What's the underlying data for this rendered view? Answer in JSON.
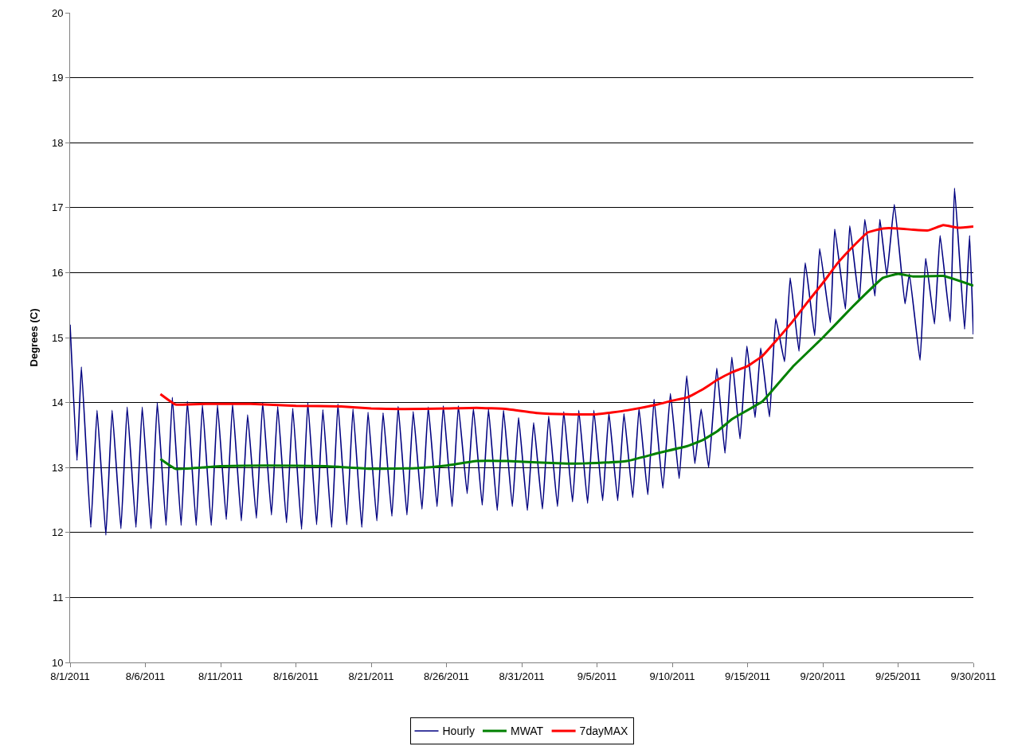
{
  "chart_data": {
    "type": "line",
    "ylabel": "Degrees (C)",
    "xlim": [
      "2011-08-01",
      "2011-09-30"
    ],
    "xticks": [
      {
        "value": "2011-08-01",
        "label": "8/1/2011"
      },
      {
        "value": "2011-08-06",
        "label": "8/6/2011"
      },
      {
        "value": "2011-08-11",
        "label": "8/11/2011"
      },
      {
        "value": "2011-08-16",
        "label": "8/16/2011"
      },
      {
        "value": "2011-08-21",
        "label": "8/21/2011"
      },
      {
        "value": "2011-08-26",
        "label": "8/26/2011"
      },
      {
        "value": "2011-08-31",
        "label": "8/31/2011"
      },
      {
        "value": "2011-09-05",
        "label": "9/5/2011"
      },
      {
        "value": "2011-09-10",
        "label": "9/10/2011"
      },
      {
        "value": "2011-09-15",
        "label": "9/15/2011"
      },
      {
        "value": "2011-09-20",
        "label": "9/20/2011"
      },
      {
        "value": "2011-09-25",
        "label": "9/25/2011"
      },
      {
        "value": "2011-09-30",
        "label": "9/30/2011"
      }
    ],
    "ylim": [
      10,
      20
    ],
    "yticks": [
      10,
      11,
      12,
      13,
      14,
      15,
      16,
      17,
      18,
      19,
      20
    ],
    "grid": "y",
    "legend": "bottom",
    "marker": "none",
    "line_style": "solid",
    "series": [
      {
        "name": "Hourly",
        "color": "#000080",
        "x": [
          "2011-08-01T00:00",
          "2011-08-01T11:00",
          "2011-08-01T18:00",
          "2011-08-02T09:00",
          "2011-08-02T19:00",
          "2011-08-03T09:00",
          "2011-08-03T19:00",
          "2011-08-04T09:00",
          "2011-08-04T19:00",
          "2011-08-05T09:00",
          "2011-08-05T19:00",
          "2011-08-06T09:00",
          "2011-08-06T19:00",
          "2011-08-07T09:00",
          "2011-08-07T19:00",
          "2011-08-08T09:00",
          "2011-08-08T19:00",
          "2011-08-09T09:00",
          "2011-08-09T19:00",
          "2011-08-10T09:00",
          "2011-08-10T19:00",
          "2011-08-11T09:00",
          "2011-08-11T19:00",
          "2011-08-12T09:00",
          "2011-08-12T19:00",
          "2011-08-13T09:00",
          "2011-08-13T19:00",
          "2011-08-14T09:00",
          "2011-08-14T19:00",
          "2011-08-15T09:00",
          "2011-08-15T19:00",
          "2011-08-16T09:00",
          "2011-08-16T19:00",
          "2011-08-17T09:00",
          "2011-08-17T19:00",
          "2011-08-18T09:00",
          "2011-08-18T19:00",
          "2011-08-19T09:00",
          "2011-08-19T19:00",
          "2011-08-20T09:00",
          "2011-08-20T19:00",
          "2011-08-21T09:00",
          "2011-08-21T19:00",
          "2011-08-22T09:00",
          "2011-08-22T19:00",
          "2011-08-23T09:00",
          "2011-08-23T19:00",
          "2011-08-24T09:00",
          "2011-08-24T19:00",
          "2011-08-25T09:00",
          "2011-08-25T19:00",
          "2011-08-26T09:00",
          "2011-08-26T19:00",
          "2011-08-27T09:00",
          "2011-08-27T19:00",
          "2011-08-28T09:00",
          "2011-08-28T19:00",
          "2011-08-29T09:00",
          "2011-08-29T19:00",
          "2011-08-30T09:00",
          "2011-08-30T19:00",
          "2011-08-31T09:00",
          "2011-08-31T19:00",
          "2011-09-01T09:00",
          "2011-09-01T19:00",
          "2011-09-02T09:00",
          "2011-09-02T19:00",
          "2011-09-03T09:00",
          "2011-09-03T19:00",
          "2011-09-04T09:00",
          "2011-09-04T19:00",
          "2011-09-05T09:00",
          "2011-09-05T19:00",
          "2011-09-06T09:00",
          "2011-09-06T19:00",
          "2011-09-07T09:00",
          "2011-09-07T19:00",
          "2011-09-08T09:00",
          "2011-09-08T19:00",
          "2011-09-09T09:00",
          "2011-09-09T21:00",
          "2011-09-10T11:00",
          "2011-09-10T23:00",
          "2011-09-11T12:00",
          "2011-09-11T22:00",
          "2011-09-12T10:00",
          "2011-09-12T23:00",
          "2011-09-13T12:00",
          "2011-09-13T23:00",
          "2011-09-14T12:00",
          "2011-09-14T23:00",
          "2011-09-15T12:00",
          "2011-09-15T21:00",
          "2011-09-16T11:00",
          "2011-09-16T21:00",
          "2011-09-17T11:00",
          "2011-09-17T20:00",
          "2011-09-18T10:00",
          "2011-09-18T20:00",
          "2011-09-19T11:00",
          "2011-09-19T19:00",
          "2011-09-20T12:00",
          "2011-09-20T19:00",
          "2011-09-21T12:00",
          "2011-09-21T19:00",
          "2011-09-22T10:00",
          "2011-09-22T19:00",
          "2011-09-23T11:00",
          "2011-09-23T19:00",
          "2011-09-24T06:00",
          "2011-09-24T18:00",
          "2011-09-25T11:00",
          "2011-09-25T18:00",
          "2011-09-26T11:00",
          "2011-09-26T20:00",
          "2011-09-27T10:00",
          "2011-09-27T19:00",
          "2011-09-28T11:00",
          "2011-09-28T18:00",
          "2011-09-29T10:00",
          "2011-09-29T18:00",
          "2011-09-30T00:00"
        ],
        "values": [
          15.2,
          13.11,
          14.55,
          12.08,
          13.88,
          11.96,
          13.88,
          12.06,
          13.93,
          12.08,
          13.93,
          12.06,
          14.0,
          12.11,
          14.08,
          12.11,
          14.02,
          12.11,
          13.96,
          12.11,
          13.96,
          12.2,
          13.98,
          12.18,
          13.81,
          12.22,
          14.0,
          12.27,
          13.94,
          12.15,
          13.91,
          12.05,
          14.0,
          12.12,
          13.89,
          12.08,
          13.98,
          12.12,
          13.9,
          12.08,
          13.85,
          12.18,
          13.84,
          12.25,
          13.94,
          12.27,
          13.86,
          12.36,
          13.93,
          12.4,
          13.95,
          12.4,
          13.95,
          12.6,
          13.91,
          12.42,
          13.9,
          12.34,
          13.88,
          12.4,
          13.77,
          12.34,
          13.69,
          12.36,
          13.79,
          12.4,
          13.86,
          12.47,
          13.88,
          12.45,
          13.88,
          12.49,
          13.84,
          12.49,
          13.83,
          12.54,
          13.91,
          12.58,
          14.05,
          12.68,
          14.14,
          12.83,
          14.41,
          13.06,
          13.9,
          13.0,
          14.53,
          13.22,
          14.7,
          13.44,
          14.87,
          13.77,
          14.84,
          13.78,
          15.29,
          14.63,
          15.92,
          14.79,
          16.15,
          15.03,
          16.37,
          15.23,
          16.67,
          15.44,
          16.72,
          15.56,
          16.82,
          15.64,
          16.82,
          15.96,
          17.05,
          15.52,
          15.98,
          14.65,
          16.22,
          15.21,
          16.57,
          15.25,
          17.3,
          15.13,
          16.57,
          15.05
        ]
      },
      {
        "name": "MWAT",
        "color": "#008000",
        "x": [
          "2011-08-07",
          "2011-08-08",
          "2011-08-11",
          "2011-08-14",
          "2011-08-18",
          "2011-08-21",
          "2011-08-24",
          "2011-08-26",
          "2011-08-28",
          "2011-08-30",
          "2011-09-03",
          "2011-09-05",
          "2011-09-07",
          "2011-09-09",
          "2011-09-11",
          "2011-09-12",
          "2011-09-13",
          "2011-09-14",
          "2011-09-16",
          "2011-09-18",
          "2011-09-20",
          "2011-09-22",
          "2011-09-24",
          "2011-09-25",
          "2011-09-26",
          "2011-09-28",
          "2011-09-30"
        ],
        "values": [
          13.13,
          12.98,
          13.02,
          13.03,
          13.02,
          12.98,
          12.99,
          13.03,
          13.1,
          13.1,
          13.06,
          13.07,
          13.1,
          13.22,
          13.33,
          13.42,
          13.56,
          13.75,
          14.02,
          14.55,
          15.0,
          15.48,
          15.92,
          15.98,
          15.94,
          15.95,
          15.8
        ]
      },
      {
        "name": "7dayMAX",
        "color": "#ff0000",
        "x": [
          "2011-08-07",
          "2011-08-08",
          "2011-08-10",
          "2011-08-13",
          "2011-08-16",
          "2011-08-19",
          "2011-08-21",
          "2011-08-23",
          "2011-08-26",
          "2011-08-28",
          "2011-08-30",
          "2011-09-01",
          "2011-09-03",
          "2011-09-05",
          "2011-09-07",
          "2011-09-09",
          "2011-09-10",
          "2011-09-11",
          "2011-09-12",
          "2011-09-13",
          "2011-09-14",
          "2011-09-15",
          "2011-09-16",
          "2011-09-17",
          "2011-09-18",
          "2011-09-19",
          "2011-09-20",
          "2011-09-21",
          "2011-09-22",
          "2011-09-23",
          "2011-09-24",
          "2011-09-25",
          "2011-09-26",
          "2011-09-27",
          "2011-09-28",
          "2011-09-29",
          "2011-09-30"
        ],
        "values": [
          14.13,
          13.97,
          13.98,
          13.98,
          13.95,
          13.94,
          13.91,
          13.9,
          13.91,
          13.92,
          13.9,
          13.84,
          13.82,
          13.82,
          13.88,
          13.97,
          14.03,
          14.08,
          14.2,
          14.35,
          14.47,
          14.56,
          14.72,
          14.98,
          15.25,
          15.55,
          15.84,
          16.15,
          16.4,
          16.62,
          16.68,
          16.68,
          16.66,
          16.65,
          16.73,
          16.69,
          16.71
        ]
      }
    ]
  }
}
